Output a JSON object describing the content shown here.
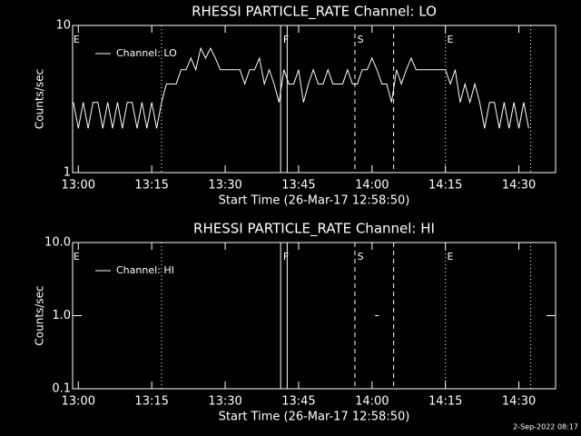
{
  "chart_data": [
    {
      "type": "line",
      "title": "RHESSI PARTICLE_RATE Channel: LO",
      "x_label": "Start Time (26-Mar-17 12:58:50)",
      "y_label": "Counts/sec",
      "log_y": true,
      "color": "#ffffff",
      "legend_name": "Channel: LO",
      "xlim": [
        "12:58:50",
        "14:37:30"
      ],
      "xticks": [
        "13:00",
        "13:15",
        "13:30",
        "13:45",
        "14:00",
        "14:15",
        "14:30"
      ],
      "ylim": [
        1,
        10
      ],
      "yticks": [
        1,
        10
      ],
      "vlines": [
        {
          "x": "13:17:00",
          "style": "dotted"
        },
        {
          "x": "13:41:20",
          "style": "solid"
        },
        {
          "x": "13:42:40",
          "style": "solid"
        },
        {
          "x": "13:56:30",
          "style": "dashed"
        },
        {
          "x": "14:04:25",
          "style": "dashed"
        },
        {
          "x": "14:15:00",
          "style": "dotted"
        },
        {
          "x": "14:32:25",
          "style": "dotted"
        }
      ],
      "annotations": [
        {
          "label": "E",
          "x": "12:59:00"
        },
        {
          "label": "F",
          "x": "13:41:50"
        },
        {
          "label": "S",
          "x": "13:57:00"
        },
        {
          "label": "E",
          "x": "14:15:20"
        }
      ],
      "x": [
        "12:59",
        "13:00",
        "13:01",
        "13:02",
        "13:03",
        "13:04",
        "13:05",
        "13:06",
        "13:07",
        "13:08",
        "13:09",
        "13:10",
        "13:11",
        "13:12",
        "13:13",
        "13:14",
        "13:15",
        "13:16",
        "13:17",
        "13:18",
        "13:19",
        "13:20",
        "13:21",
        "13:22",
        "13:23",
        "13:24",
        "13:25",
        "13:26",
        "13:27",
        "13:28",
        "13:29",
        "13:30",
        "13:31",
        "13:32",
        "13:33",
        "13:34",
        "13:35",
        "13:36",
        "13:37",
        "13:38",
        "13:39",
        "13:40",
        "13:41",
        "13:42",
        "13:43",
        "13:44",
        "13:45",
        "13:46",
        "13:47",
        "13:48",
        "13:49",
        "13:50",
        "13:51",
        "13:52",
        "13:53",
        "13:54",
        "13:55",
        "13:56",
        "13:57",
        "13:58",
        "13:59",
        "14:00",
        "14:01",
        "14:02",
        "14:03",
        "14:04",
        "14:05",
        "14:06",
        "14:07",
        "14:08",
        "14:09",
        "14:10",
        "14:11",
        "14:12",
        "14:13",
        "14:14",
        "14:15",
        "14:16",
        "14:17",
        "14:18",
        "14:19",
        "14:20",
        "14:21",
        "14:22",
        "14:23",
        "14:24",
        "14:25",
        "14:26",
        "14:27",
        "14:28",
        "14:29",
        "14:30",
        "14:31",
        "14:32"
      ],
      "values": [
        3,
        2,
        3,
        2,
        3,
        3,
        2,
        3,
        2,
        3,
        2,
        3,
        3,
        2,
        3,
        2,
        3,
        2,
        3,
        4,
        4,
        4,
        5,
        5,
        6,
        5,
        7,
        6,
        7,
        6,
        5,
        5,
        5,
        5,
        5,
        4,
        5,
        5,
        6,
        4,
        5,
        4,
        3,
        5,
        4,
        4,
        5,
        3,
        4,
        5,
        4,
        4,
        5,
        4,
        4,
        4,
        5,
        4,
        4,
        5,
        5,
        6,
        5,
        4,
        4,
        3,
        5,
        4,
        5,
        6,
        5,
        5,
        5,
        5,
        5,
        5,
        5,
        4,
        5,
        3,
        4,
        3,
        4,
        3,
        2,
        3,
        3,
        2,
        3,
        2,
        3,
        2,
        3,
        2
      ]
    },
    {
      "type": "line",
      "title": "RHESSI PARTICLE_RATE Channel: HI",
      "x_label": "Start Time (26-Mar-17 12:58:50)",
      "y_label": "Counts/sec",
      "log_y": true,
      "color": "#ffffff",
      "legend_name": "Channel: HI",
      "xlim": [
        "12:58:50",
        "14:37:30"
      ],
      "xticks": [
        "13:00",
        "13:15",
        "13:30",
        "13:45",
        "14:00",
        "14:15",
        "14:30"
      ],
      "ylim": [
        0.1,
        10
      ],
      "yticks": [
        0.1,
        {
          "value": 1,
          "label": "1.0"
        },
        {
          "value": 10,
          "label": "10.0"
        }
      ],
      "vlines": [
        {
          "x": "13:17:00",
          "style": "dotted"
        },
        {
          "x": "13:41:20",
          "style": "solid"
        },
        {
          "x": "13:42:40",
          "style": "solid"
        },
        {
          "x": "13:56:30",
          "style": "dashed"
        },
        {
          "x": "14:04:25",
          "style": "dashed"
        },
        {
          "x": "14:15:00",
          "style": "dotted"
        },
        {
          "x": "14:32:25",
          "style": "dotted"
        }
      ],
      "annotations": [
        {
          "label": "E",
          "x": "12:59:00"
        },
        {
          "label": "F",
          "x": "13:41:50"
        },
        {
          "label": "S",
          "x": "13:57:00"
        },
        {
          "label": "E",
          "x": "14:15:20"
        }
      ],
      "x": [
        "14:01"
      ],
      "values": [
        1
      ]
    }
  ],
  "footer": "2-Sep-2022 08:17"
}
